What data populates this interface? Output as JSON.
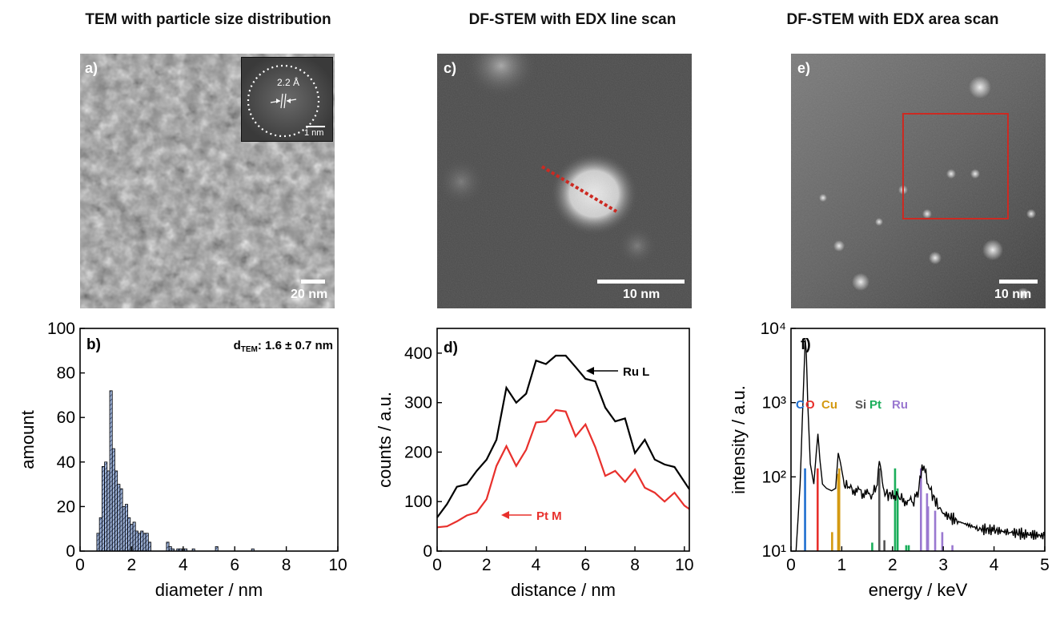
{
  "columns": [
    {
      "title": "TEM with particle size distribution"
    },
    {
      "title": "DF-STEM with EDX line scan"
    },
    {
      "title": "DF-STEM with EDX area scan"
    }
  ],
  "images": {
    "a": {
      "label": "a)",
      "scalebar": "20 nm",
      "inset_spacing": "2.2 Å",
      "inset_scalebar": "1 nm"
    },
    "c": {
      "label": "c)",
      "scalebar": "10 nm"
    },
    "e": {
      "label": "e)",
      "scalebar": "10 nm"
    }
  },
  "colors": {
    "bar_fill": "#9fb4d9",
    "ru": "#000000",
    "pt": "#e8302c",
    "C": "#1f6fd0",
    "O": "#e8302c",
    "Cu": "#d49a12",
    "Si": "#555555",
    "Pt": "#1aae5a",
    "Ru": "#9a78d0"
  },
  "chart_data": [
    {
      "type": "bar",
      "panel": "b)",
      "annotation": "dTEM: 1.6 ± 0.7 nm",
      "xlabel": "diameter / nm",
      "ylabel": "amount",
      "xlim": [
        0,
        10
      ],
      "ylim": [
        0,
        100
      ],
      "xticks": [
        0,
        2,
        4,
        6,
        8,
        10
      ],
      "yticks": [
        0,
        20,
        40,
        60,
        80,
        100
      ],
      "bin_width": 0.1,
      "x": [
        0.7,
        0.8,
        0.9,
        1.0,
        1.1,
        1.2,
        1.3,
        1.4,
        1.5,
        1.6,
        1.7,
        1.8,
        1.9,
        2.0,
        2.1,
        2.2,
        2.3,
        2.4,
        2.5,
        2.6,
        2.7,
        3.4,
        3.5,
        3.6,
        3.8,
        3.9,
        4.0,
        4.1,
        4.4,
        5.3,
        6.7
      ],
      "values": [
        8,
        15,
        38,
        40,
        36,
        72,
        46,
        36,
        30,
        28,
        20,
        21,
        15,
        12,
        13,
        9,
        8,
        9,
        8,
        8,
        4,
        4,
        2,
        1,
        1,
        1,
        1,
        1,
        1,
        2,
        1
      ]
    },
    {
      "type": "line",
      "panel": "d)",
      "xlabel": "distance / nm",
      "ylabel": "counts / a.u.",
      "xlim": [
        0,
        10.2
      ],
      "ylim": [
        0,
        450
      ],
      "xticks": [
        0,
        2,
        4,
        6,
        8,
        10
      ],
      "yticks": [
        0,
        100,
        200,
        300,
        400
      ],
      "series": [
        {
          "name": "Ru L",
          "x": [
            0,
            0.4,
            0.8,
            1.2,
            1.6,
            2.0,
            2.4,
            2.8,
            3.2,
            3.6,
            4.0,
            4.4,
            4.8,
            5.2,
            5.6,
            6.0,
            6.4,
            6.8,
            7.2,
            7.6,
            8.0,
            8.4,
            8.8,
            9.2,
            9.6,
            10.0,
            10.2
          ],
          "values": [
            68,
            95,
            130,
            135,
            162,
            185,
            225,
            330,
            300,
            318,
            385,
            378,
            395,
            395,
            372,
            348,
            343,
            290,
            262,
            268,
            198,
            225,
            185,
            175,
            170,
            140,
            125
          ]
        },
        {
          "name": "Pt M",
          "x": [
            0,
            0.4,
            0.8,
            1.2,
            1.6,
            2.0,
            2.4,
            2.8,
            3.2,
            3.6,
            4.0,
            4.4,
            4.8,
            5.2,
            5.6,
            6.0,
            6.4,
            6.8,
            7.2,
            7.6,
            8.0,
            8.4,
            8.8,
            9.2,
            9.6,
            10.0,
            10.2
          ],
          "values": [
            48,
            50,
            60,
            72,
            78,
            105,
            172,
            212,
            172,
            205,
            260,
            262,
            285,
            282,
            232,
            256,
            210,
            152,
            162,
            140,
            165,
            128,
            118,
            100,
            118,
            92,
            85
          ]
        }
      ]
    },
    {
      "type": "line",
      "panel": "f)",
      "xlabel": "energy / keV",
      "ylabel": "intensity / a.u.",
      "yscale": "log",
      "xlim": [
        0,
        5
      ],
      "ylim": [
        10,
        10000
      ],
      "xticks": [
        0,
        1,
        2,
        3,
        4,
        5
      ],
      "yticks": [
        10,
        100,
        1000,
        10000
      ],
      "ytick_labels": [
        "10¹",
        "10²",
        "10³",
        "10⁴"
      ],
      "series": [
        {
          "x": [
            0.1,
            0.18,
            0.22,
            0.26,
            0.28,
            0.3,
            0.33,
            0.38,
            0.45,
            0.5,
            0.53,
            0.57,
            0.62,
            0.7,
            0.8,
            0.88,
            0.93,
            0.97,
            1.05,
            1.2,
            1.4,
            1.6,
            1.7,
            1.74,
            1.78,
            1.85,
            2.0,
            2.1,
            2.2,
            2.4,
            2.5,
            2.58,
            2.62,
            2.7,
            2.85,
            3.0,
            3.3,
            3.7,
            4.0,
            4.3,
            4.6,
            5.0
          ],
          "values": [
            10,
            80,
            500,
            3000,
            7000,
            5000,
            1000,
            150,
            80,
            220,
            380,
            170,
            80,
            70,
            65,
            70,
            210,
            160,
            80,
            70,
            60,
            55,
            80,
            180,
            100,
            60,
            55,
            58,
            50,
            45,
            60,
            130,
            140,
            80,
            45,
            32,
            25,
            20,
            19,
            18,
            17,
            16
          ]
        }
      ],
      "element_labels": [
        "C",
        "O",
        "Cu",
        "Si",
        "Pt",
        "Ru"
      ],
      "markers": [
        {
          "element": "C",
          "x": [
            0.277
          ],
          "h": [
            130
          ]
        },
        {
          "element": "O",
          "x": [
            0.525
          ],
          "h": [
            130
          ]
        },
        {
          "element": "Cu",
          "x": [
            0.93,
            0.95,
            0.81
          ],
          "h": [
            110,
            130,
            18
          ]
        },
        {
          "element": "Si",
          "x": [
            1.74,
            1.84
          ],
          "h": [
            130,
            14
          ]
        },
        {
          "element": "Pt",
          "x": [
            2.05,
            2.1,
            2.27,
            2.32,
            1.6
          ],
          "h": [
            130,
            70,
            12,
            12,
            13
          ]
        },
        {
          "element": "Ru",
          "x": [
            2.56,
            2.68,
            2.84,
            2.98,
            3.18,
            2.7
          ],
          "h": [
            130,
            60,
            35,
            18,
            12,
            40
          ]
        }
      ]
    }
  ]
}
